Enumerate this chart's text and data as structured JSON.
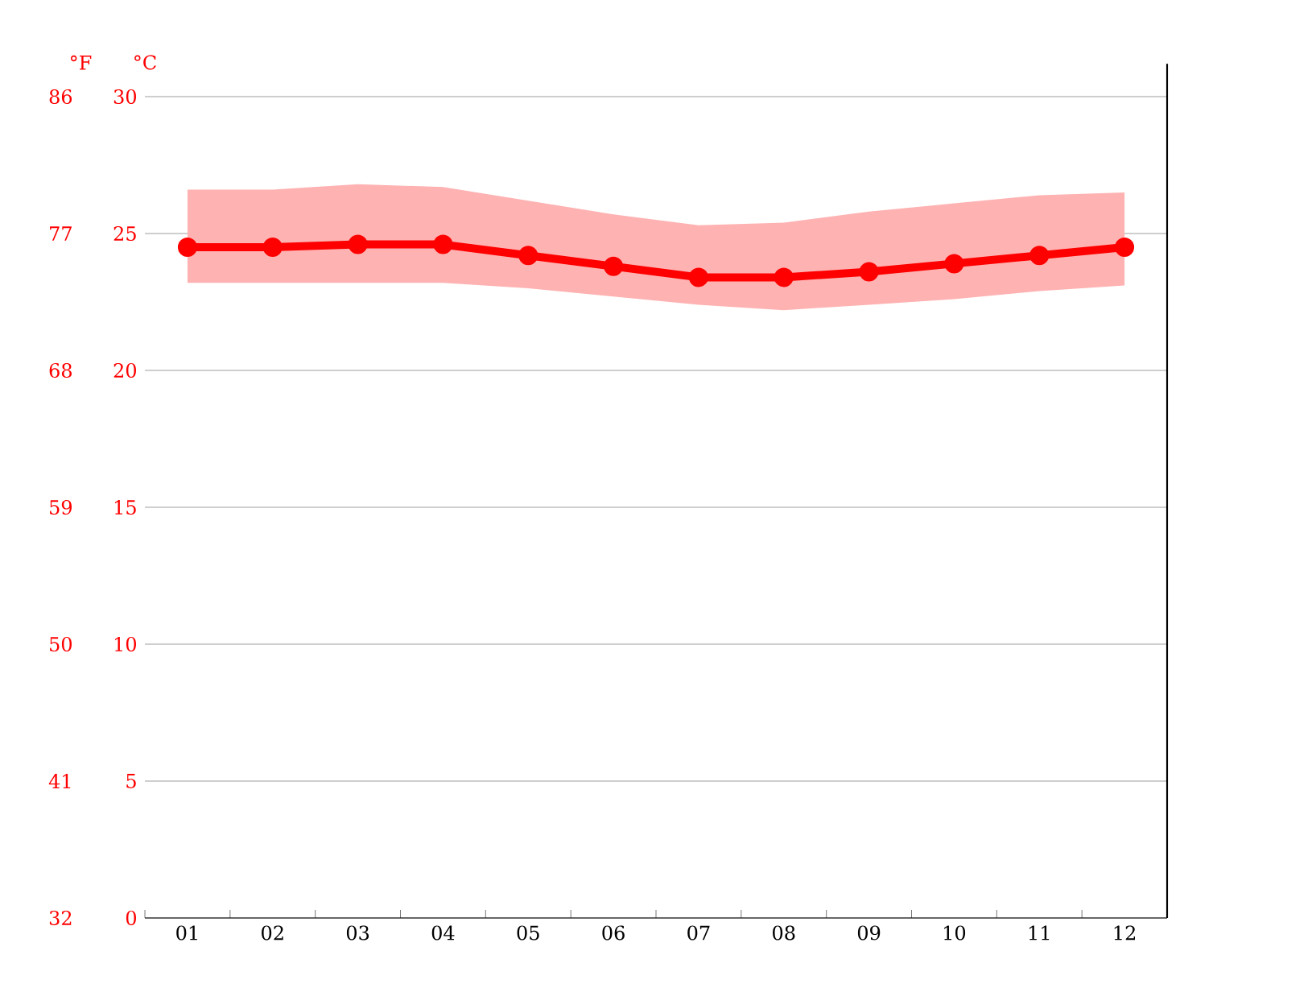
{
  "chart_data": {
    "type": "line",
    "ylabel": "°C",
    "y2label": "°F",
    "categories": [
      "01",
      "02",
      "03",
      "04",
      "05",
      "06",
      "07",
      "08",
      "09",
      "10",
      "11",
      "12"
    ],
    "series": [
      {
        "color": "#ff0000",
        "values": [
          24.5,
          24.5,
          24.6,
          24.6,
          24.2,
          23.8,
          23.4,
          23.4,
          23.6,
          23.9,
          24.2,
          24.5
        ],
        "lower": [
          23.2,
          23.2,
          23.2,
          23.2,
          23.0,
          22.7,
          22.4,
          22.2,
          22.4,
          22.6,
          22.9,
          23.1
        ],
        "upper": [
          26.6,
          26.6,
          26.8,
          26.7,
          26.2,
          25.7,
          25.3,
          25.4,
          25.8,
          26.1,
          26.4,
          26.5
        ]
      }
    ],
    "ylim": [
      0,
      30
    ],
    "yticks": [
      0,
      5,
      10,
      15,
      20,
      25,
      30
    ],
    "y2lim": [
      32,
      86
    ],
    "y2ticks": [
      32,
      41,
      50,
      59,
      68,
      77,
      86
    ],
    "grid": "y",
    "marker": "circle",
    "line_style": "solid"
  }
}
